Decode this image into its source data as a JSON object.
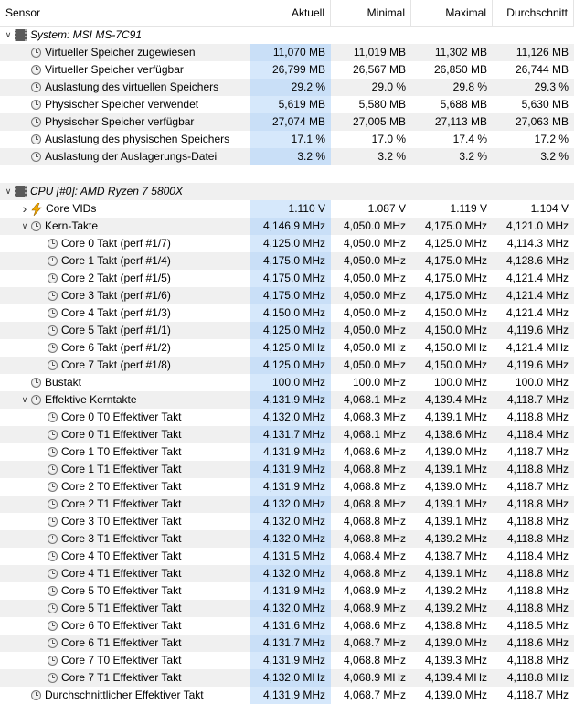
{
  "columns": [
    "Sensor",
    "Aktuell",
    "Minimal",
    "Maximal",
    "Durchschnitt"
  ],
  "rows": [
    {
      "type": "group",
      "indent": 0,
      "exp": "v",
      "icon": "chip",
      "name": "System: MSI MS-7C91",
      "v": [
        "",
        "",
        "",
        ""
      ]
    },
    {
      "type": "item",
      "indent": 1,
      "exp": "",
      "icon": "clock",
      "name": "Virtueller Speicher zugewiesen",
      "v": [
        "11,070 MB",
        "11,019 MB",
        "11,302 MB",
        "11,126 MB"
      ]
    },
    {
      "type": "item",
      "indent": 1,
      "exp": "",
      "icon": "clock",
      "name": "Virtueller Speicher verfügbar",
      "v": [
        "26,799 MB",
        "26,567 MB",
        "26,850 MB",
        "26,744 MB"
      ]
    },
    {
      "type": "item",
      "indent": 1,
      "exp": "",
      "icon": "clock",
      "name": "Auslastung des virtuellen Speichers",
      "v": [
        "29.2 %",
        "29.0 %",
        "29.8 %",
        "29.3 %"
      ]
    },
    {
      "type": "item",
      "indent": 1,
      "exp": "",
      "icon": "clock",
      "name": "Physischer Speicher verwendet",
      "v": [
        "5,619 MB",
        "5,580 MB",
        "5,688 MB",
        "5,630 MB"
      ]
    },
    {
      "type": "item",
      "indent": 1,
      "exp": "",
      "icon": "clock",
      "name": "Physischer Speicher verfügbar",
      "v": [
        "27,074 MB",
        "27,005 MB",
        "27,113 MB",
        "27,063 MB"
      ]
    },
    {
      "type": "item",
      "indent": 1,
      "exp": "",
      "icon": "clock",
      "name": "Auslastung des physischen Speichers",
      "v": [
        "17.1 %",
        "17.0 %",
        "17.4 %",
        "17.2 %"
      ]
    },
    {
      "type": "item",
      "indent": 1,
      "exp": "",
      "icon": "clock",
      "name": "Auslastung der Auslagerungs-Datei",
      "v": [
        "3.2 %",
        "3.2 %",
        "3.2 %",
        "3.2 %"
      ]
    },
    {
      "type": "blank",
      "indent": 0,
      "exp": "",
      "icon": "",
      "name": "",
      "v": [
        "",
        "",
        "",
        ""
      ]
    },
    {
      "type": "group",
      "indent": 0,
      "exp": "v",
      "icon": "chip",
      "name": "CPU [#0]: AMD Ryzen 7 5800X",
      "v": [
        "",
        "",
        "",
        ""
      ]
    },
    {
      "type": "item",
      "indent": 1,
      "exp": ">",
      "icon": "bolt",
      "name": "Core VIDs",
      "v": [
        "1.110 V",
        "1.087 V",
        "1.119 V",
        "1.104 V"
      ]
    },
    {
      "type": "item",
      "indent": 1,
      "exp": "v",
      "icon": "clock",
      "name": "Kern-Takte",
      "v": [
        "4,146.9 MHz",
        "4,050.0 MHz",
        "4,175.0 MHz",
        "4,121.0 MHz"
      ]
    },
    {
      "type": "item",
      "indent": 2,
      "exp": "",
      "icon": "clock",
      "name": "Core 0 Takt (perf #1/7)",
      "v": [
        "4,125.0 MHz",
        "4,050.0 MHz",
        "4,125.0 MHz",
        "4,114.3 MHz"
      ]
    },
    {
      "type": "item",
      "indent": 2,
      "exp": "",
      "icon": "clock",
      "name": "Core 1 Takt (perf #1/4)",
      "v": [
        "4,175.0 MHz",
        "4,050.0 MHz",
        "4,175.0 MHz",
        "4,128.6 MHz"
      ]
    },
    {
      "type": "item",
      "indent": 2,
      "exp": "",
      "icon": "clock",
      "name": "Core 2 Takt (perf #1/5)",
      "v": [
        "4,175.0 MHz",
        "4,050.0 MHz",
        "4,175.0 MHz",
        "4,121.4 MHz"
      ]
    },
    {
      "type": "item",
      "indent": 2,
      "exp": "",
      "icon": "clock",
      "name": "Core 3 Takt (perf #1/6)",
      "v": [
        "4,175.0 MHz",
        "4,050.0 MHz",
        "4,175.0 MHz",
        "4,121.4 MHz"
      ]
    },
    {
      "type": "item",
      "indent": 2,
      "exp": "",
      "icon": "clock",
      "name": "Core 4 Takt (perf #1/3)",
      "v": [
        "4,150.0 MHz",
        "4,050.0 MHz",
        "4,150.0 MHz",
        "4,121.4 MHz"
      ]
    },
    {
      "type": "item",
      "indent": 2,
      "exp": "",
      "icon": "clock",
      "name": "Core 5 Takt (perf #1/1)",
      "v": [
        "4,125.0 MHz",
        "4,050.0 MHz",
        "4,150.0 MHz",
        "4,119.6 MHz"
      ]
    },
    {
      "type": "item",
      "indent": 2,
      "exp": "",
      "icon": "clock",
      "name": "Core 6 Takt (perf #1/2)",
      "v": [
        "4,125.0 MHz",
        "4,050.0 MHz",
        "4,150.0 MHz",
        "4,121.4 MHz"
      ]
    },
    {
      "type": "item",
      "indent": 2,
      "exp": "",
      "icon": "clock",
      "name": "Core 7 Takt (perf #1/8)",
      "v": [
        "4,125.0 MHz",
        "4,050.0 MHz",
        "4,150.0 MHz",
        "4,119.6 MHz"
      ]
    },
    {
      "type": "item",
      "indent": 1,
      "exp": "",
      "icon": "clock",
      "name": "Bustakt",
      "v": [
        "100.0 MHz",
        "100.0 MHz",
        "100.0 MHz",
        "100.0 MHz"
      ]
    },
    {
      "type": "item",
      "indent": 1,
      "exp": "v",
      "icon": "clock",
      "name": "Effektive Kerntakte",
      "v": [
        "4,131.9 MHz",
        "4,068.1 MHz",
        "4,139.4 MHz",
        "4,118.7 MHz"
      ]
    },
    {
      "type": "item",
      "indent": 2,
      "exp": "",
      "icon": "clock",
      "name": "Core 0 T0 Effektiver Takt",
      "v": [
        "4,132.0 MHz",
        "4,068.3 MHz",
        "4,139.1 MHz",
        "4,118.8 MHz"
      ]
    },
    {
      "type": "item",
      "indent": 2,
      "exp": "",
      "icon": "clock",
      "name": "Core 0 T1 Effektiver Takt",
      "v": [
        "4,131.7 MHz",
        "4,068.1 MHz",
        "4,138.6 MHz",
        "4,118.4 MHz"
      ]
    },
    {
      "type": "item",
      "indent": 2,
      "exp": "",
      "icon": "clock",
      "name": "Core 1 T0 Effektiver Takt",
      "v": [
        "4,131.9 MHz",
        "4,068.6 MHz",
        "4,139.0 MHz",
        "4,118.7 MHz"
      ]
    },
    {
      "type": "item",
      "indent": 2,
      "exp": "",
      "icon": "clock",
      "name": "Core 1 T1 Effektiver Takt",
      "v": [
        "4,131.9 MHz",
        "4,068.8 MHz",
        "4,139.1 MHz",
        "4,118.8 MHz"
      ]
    },
    {
      "type": "item",
      "indent": 2,
      "exp": "",
      "icon": "clock",
      "name": "Core 2 T0 Effektiver Takt",
      "v": [
        "4,131.9 MHz",
        "4,068.8 MHz",
        "4,139.0 MHz",
        "4,118.7 MHz"
      ]
    },
    {
      "type": "item",
      "indent": 2,
      "exp": "",
      "icon": "clock",
      "name": "Core 2 T1 Effektiver Takt",
      "v": [
        "4,132.0 MHz",
        "4,068.8 MHz",
        "4,139.1 MHz",
        "4,118.8 MHz"
      ]
    },
    {
      "type": "item",
      "indent": 2,
      "exp": "",
      "icon": "clock",
      "name": "Core 3 T0 Effektiver Takt",
      "v": [
        "4,132.0 MHz",
        "4,068.8 MHz",
        "4,139.1 MHz",
        "4,118.8 MHz"
      ]
    },
    {
      "type": "item",
      "indent": 2,
      "exp": "",
      "icon": "clock",
      "name": "Core 3 T1 Effektiver Takt",
      "v": [
        "4,132.0 MHz",
        "4,068.8 MHz",
        "4,139.2 MHz",
        "4,118.8 MHz"
      ]
    },
    {
      "type": "item",
      "indent": 2,
      "exp": "",
      "icon": "clock",
      "name": "Core 4 T0 Effektiver Takt",
      "v": [
        "4,131.5 MHz",
        "4,068.4 MHz",
        "4,138.7 MHz",
        "4,118.4 MHz"
      ]
    },
    {
      "type": "item",
      "indent": 2,
      "exp": "",
      "icon": "clock",
      "name": "Core 4 T1 Effektiver Takt",
      "v": [
        "4,132.0 MHz",
        "4,068.8 MHz",
        "4,139.1 MHz",
        "4,118.8 MHz"
      ]
    },
    {
      "type": "item",
      "indent": 2,
      "exp": "",
      "icon": "clock",
      "name": "Core 5 T0 Effektiver Takt",
      "v": [
        "4,131.9 MHz",
        "4,068.9 MHz",
        "4,139.2 MHz",
        "4,118.8 MHz"
      ]
    },
    {
      "type": "item",
      "indent": 2,
      "exp": "",
      "icon": "clock",
      "name": "Core 5 T1 Effektiver Takt",
      "v": [
        "4,132.0 MHz",
        "4,068.9 MHz",
        "4,139.2 MHz",
        "4,118.8 MHz"
      ]
    },
    {
      "type": "item",
      "indent": 2,
      "exp": "",
      "icon": "clock",
      "name": "Core 6 T0 Effektiver Takt",
      "v": [
        "4,131.6 MHz",
        "4,068.6 MHz",
        "4,138.8 MHz",
        "4,118.5 MHz"
      ]
    },
    {
      "type": "item",
      "indent": 2,
      "exp": "",
      "icon": "clock",
      "name": "Core 6 T1 Effektiver Takt",
      "v": [
        "4,131.7 MHz",
        "4,068.7 MHz",
        "4,139.0 MHz",
        "4,118.6 MHz"
      ]
    },
    {
      "type": "item",
      "indent": 2,
      "exp": "",
      "icon": "clock",
      "name": "Core 7 T0 Effektiver Takt",
      "v": [
        "4,131.9 MHz",
        "4,068.8 MHz",
        "4,139.3 MHz",
        "4,118.8 MHz"
      ]
    },
    {
      "type": "item",
      "indent": 2,
      "exp": "",
      "icon": "clock",
      "name": "Core 7 T1 Effektiver Takt",
      "v": [
        "4,132.0 MHz",
        "4,068.9 MHz",
        "4,139.4 MHz",
        "4,118.8 MHz"
      ]
    },
    {
      "type": "item",
      "indent": 1,
      "exp": "",
      "icon": "clock",
      "name": "Durchschnittlicher Effektiver Takt",
      "v": [
        "4,131.9 MHz",
        "4,068.7 MHz",
        "4,139.0 MHz",
        "4,118.7 MHz"
      ]
    }
  ]
}
